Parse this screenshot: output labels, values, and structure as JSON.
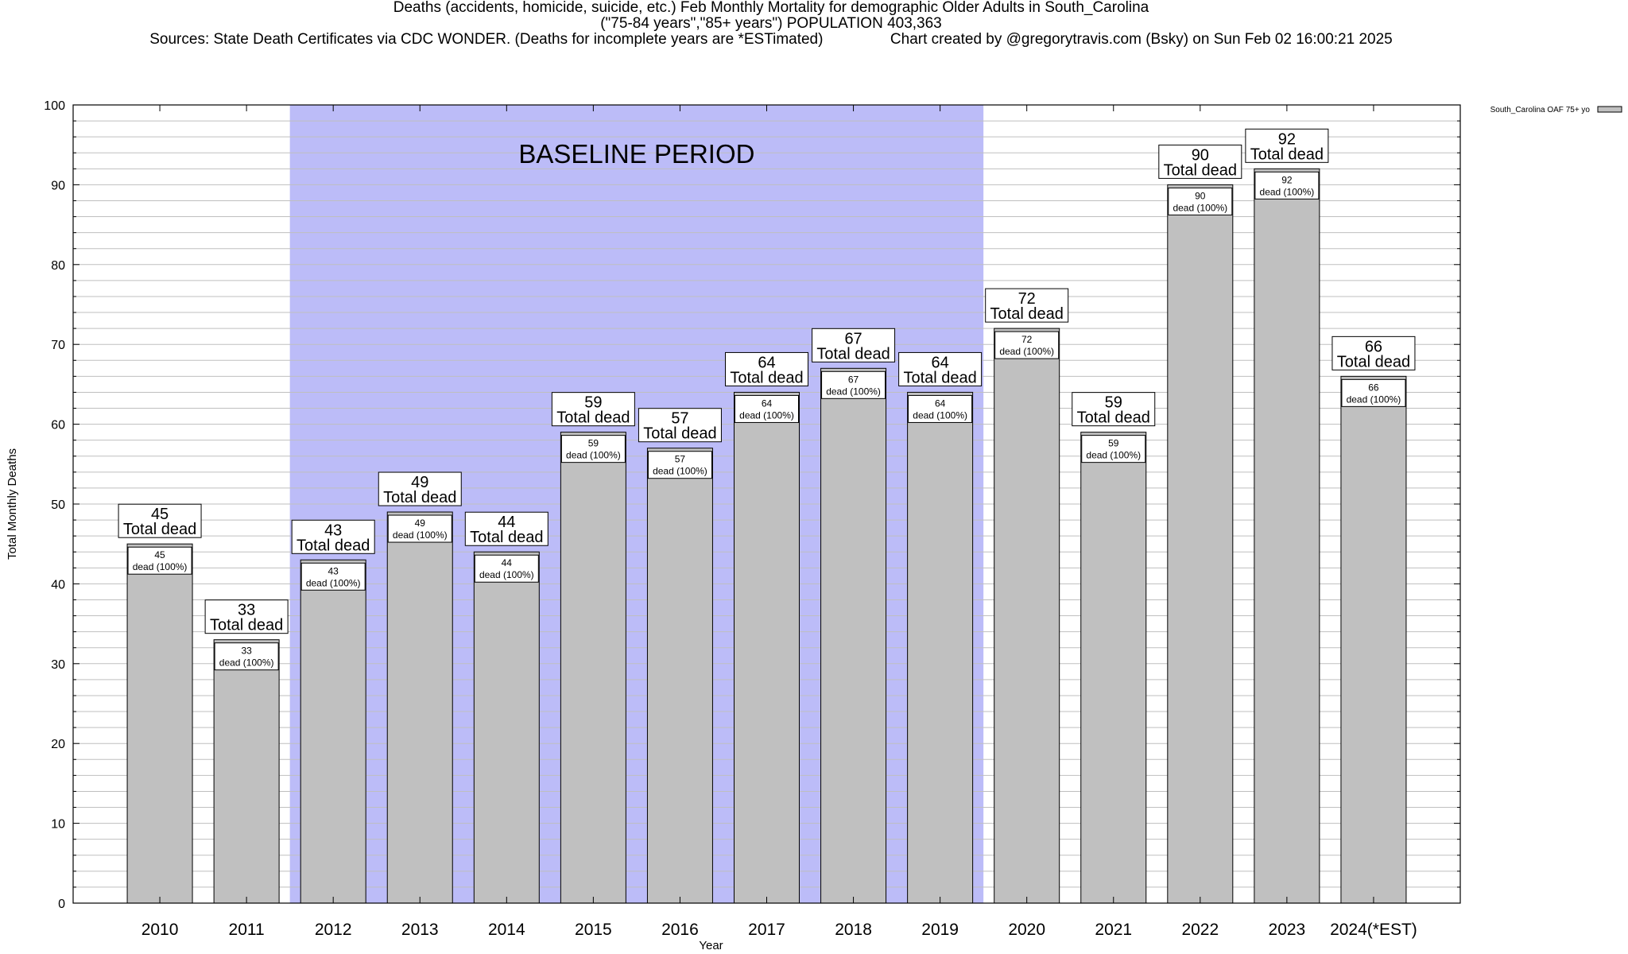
{
  "header": {
    "title_line1": "Deaths (accidents, homicide, suicide, etc.) Feb Monthly Mortality for demographic Older Adults in South_Carolina",
    "title_line2": "(\"75-84 years\",\"85+ years\") POPULATION 403,363",
    "title_line3": "Sources: State Death Certificates via CDC WONDER. (Deaths for incomplete years are *ESTimated)                Chart created by @gregorytravis.com (Bsky) on Sun Feb 02 16:00:21 2025"
  },
  "chart_data": {
    "type": "bar",
    "xlabel": "Year",
    "ylabel": "Total Monthly Deaths",
    "ylim": [
      0,
      100
    ],
    "y_ticks": [
      0,
      10,
      20,
      30,
      40,
      50,
      60,
      70,
      80,
      90,
      100
    ],
    "y_minor_step": 2,
    "grid": true,
    "categories": [
      "2010",
      "2011",
      "2012",
      "2013",
      "2014",
      "2015",
      "2016",
      "2017",
      "2018",
      "2019",
      "2020",
      "2021",
      "2022",
      "2023",
      "2024(*EST)"
    ],
    "series": [
      {
        "name": "South_Carolina OAF 75+ yo",
        "values": [
          45,
          33,
          43,
          49,
          44,
          59,
          57,
          64,
          67,
          64,
          72,
          59,
          90,
          92,
          66
        ]
      }
    ],
    "bar_label_suffix": "Total dead",
    "inner_label_suffix": "dead (100%)",
    "baseline": {
      "label": "BASELINE PERIOD",
      "start_category": "2012",
      "end_category": "2019"
    },
    "legend_position": "top-right",
    "colors": {
      "bar_fill": "#c0c0c0",
      "baseline_fill": "#bcbcf8",
      "grid": "#bfbfbf"
    }
  }
}
